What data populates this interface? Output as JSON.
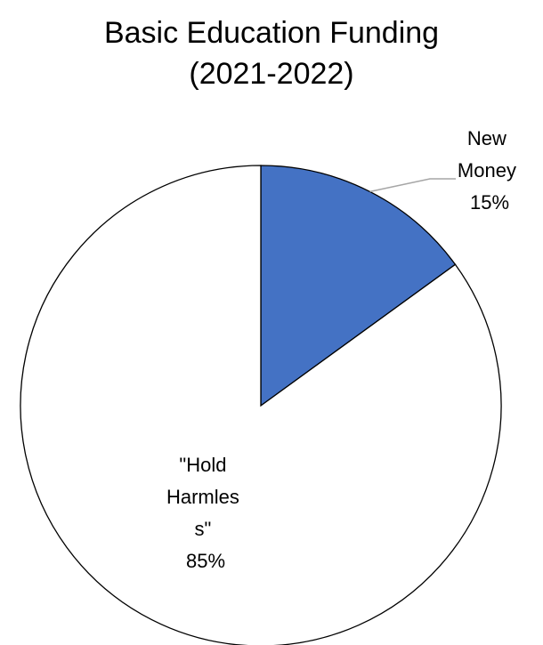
{
  "chart_data": {
    "type": "pie",
    "title": [
      "Basic Education Funding",
      "(2021-2022)"
    ],
    "slices": [
      {
        "label": [
          "New",
          "Money"
        ],
        "percent_label": "15%",
        "value": 15,
        "color": "#4472C4"
      },
      {
        "label": [
          "\"Hold",
          "Harmles",
          "s\""
        ],
        "percent_label": "85%",
        "value": 85,
        "color": "#FFFFFF"
      }
    ],
    "start_angle_deg": 0,
    "direction": "clockwise",
    "outline_color": "#000000",
    "leader_line_color": "#A6A6A6"
  }
}
